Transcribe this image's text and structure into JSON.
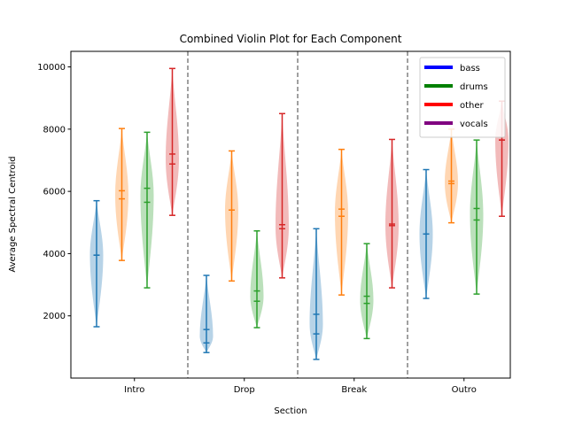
{
  "chart_data": {
    "type": "violin",
    "title": "Combined Violin Plot for Each Component",
    "xlabel": "Section",
    "ylabel": "Average Spectral Centroid",
    "sections": [
      "Intro",
      "Drop",
      "Break",
      "Outro"
    ],
    "components": [
      "bass",
      "drums",
      "other",
      "vocals"
    ],
    "ylim": [
      0,
      10500
    ],
    "yticks": [
      2000,
      4000,
      6000,
      8000,
      10000
    ],
    "legend": {
      "position": "top-right",
      "entries": [
        {
          "label": "bass",
          "color": "#0000ff"
        },
        {
          "label": "drums",
          "color": "#008000"
        },
        {
          "label": "other",
          "color": "#ff0000"
        },
        {
          "label": "vocals",
          "color": "#800080"
        }
      ]
    },
    "series_colors": [
      "#1f77b4",
      "#ff7f0e",
      "#2ca02c",
      "#d62728"
    ],
    "violins": [
      {
        "section": "Intro",
        "series_index": 0,
        "min": 1650,
        "max": 5700,
        "mean": 3950,
        "median": 3950
      },
      {
        "section": "Intro",
        "series_index": 1,
        "min": 3780,
        "max": 8020,
        "mean": 6020,
        "median": 5760
      },
      {
        "section": "Intro",
        "series_index": 2,
        "min": 2900,
        "max": 7900,
        "mean": 6100,
        "median": 5650
      },
      {
        "section": "Intro",
        "series_index": 3,
        "min": 5230,
        "max": 9950,
        "mean": 7200,
        "median": 6880
      },
      {
        "section": "Drop",
        "series_index": 0,
        "min": 820,
        "max": 3300,
        "mean": 1560,
        "median": 1130
      },
      {
        "section": "Drop",
        "series_index": 1,
        "min": 3120,
        "max": 7300,
        "mean": 5400,
        "median": 5400
      },
      {
        "section": "Drop",
        "series_index": 2,
        "min": 1620,
        "max": 4730,
        "mean": 2800,
        "median": 2470
      },
      {
        "section": "Drop",
        "series_index": 3,
        "min": 3220,
        "max": 8500,
        "mean": 4930,
        "median": 4800
      },
      {
        "section": "Break",
        "series_index": 0,
        "min": 600,
        "max": 4800,
        "mean": 2050,
        "median": 1420
      },
      {
        "section": "Break",
        "series_index": 1,
        "min": 2670,
        "max": 7350,
        "mean": 5430,
        "median": 5200
      },
      {
        "section": "Break",
        "series_index": 2,
        "min": 1270,
        "max": 4320,
        "mean": 2630,
        "median": 2400
      },
      {
        "section": "Break",
        "series_index": 3,
        "min": 2900,
        "max": 7670,
        "mean": 4950,
        "median": 4900
      },
      {
        "section": "Outro",
        "series_index": 0,
        "min": 2560,
        "max": 6700,
        "mean": 4630,
        "median": 4630
      },
      {
        "section": "Outro",
        "series_index": 1,
        "min": 4990,
        "max": 8000,
        "mean": 6330,
        "median": 6250
      },
      {
        "section": "Outro",
        "series_index": 2,
        "min": 2700,
        "max": 7650,
        "mean": 5450,
        "median": 5080
      },
      {
        "section": "Outro",
        "series_index": 3,
        "min": 5200,
        "max": 8900,
        "mean": 7650,
        "median": 7650
      }
    ],
    "section_dividers": true,
    "grid": false
  }
}
